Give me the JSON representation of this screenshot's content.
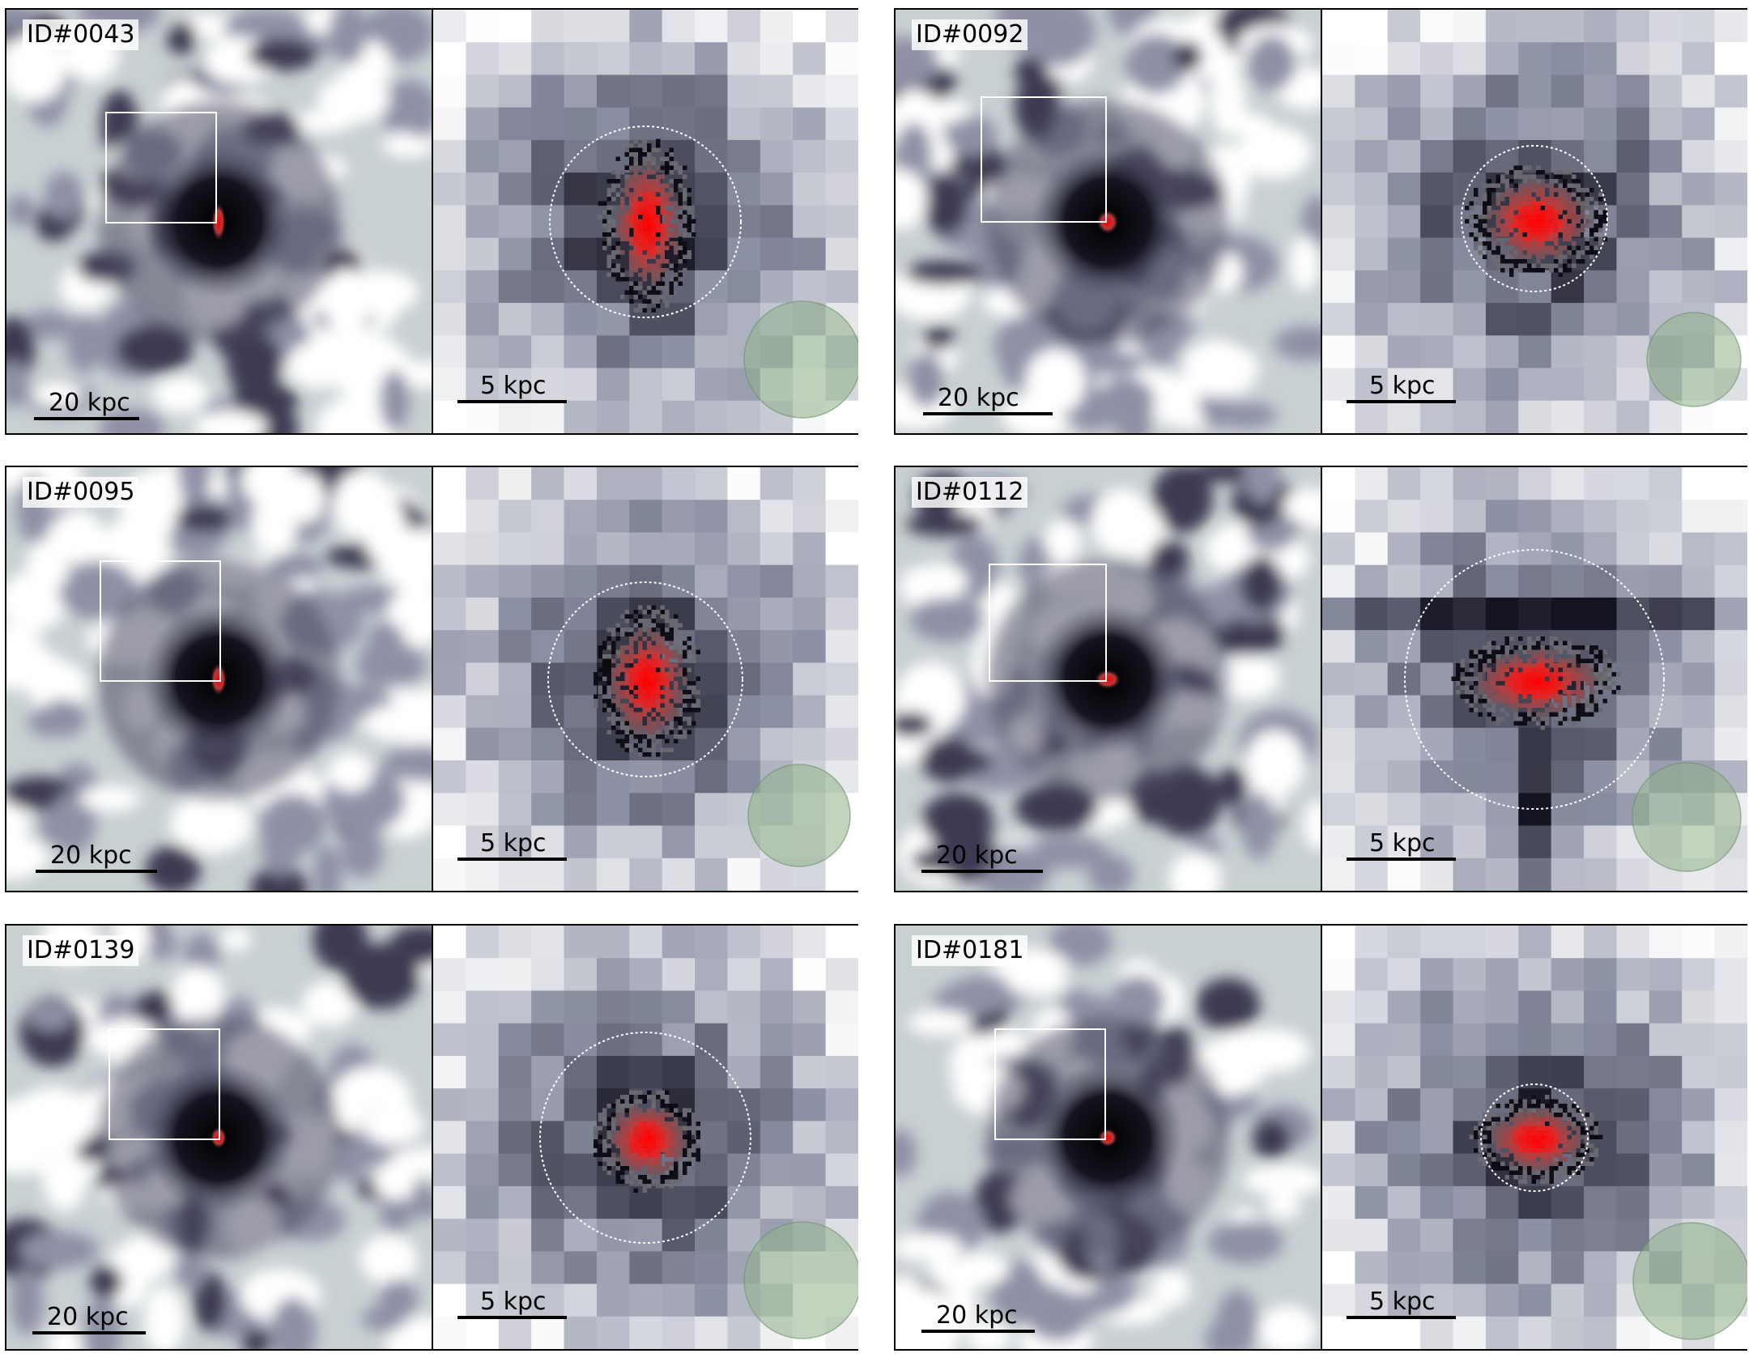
{
  "panels": [
    {
      "id": "ID#0043",
      "left_scale": "20 kpc",
      "right_scale": "5 kpc",
      "seed": 43
    },
    {
      "id": "ID#0092",
      "left_scale": "20 kpc",
      "right_scale": "5 kpc",
      "seed": 92
    },
    {
      "id": "ID#0095",
      "left_scale": "20 kpc",
      "right_scale": "5 kpc",
      "seed": 95
    },
    {
      "id": "ID#0112",
      "left_scale": "20 kpc",
      "right_scale": "5 kpc",
      "seed": 112
    },
    {
      "id": "ID#0139",
      "left_scale": "20 kpc",
      "right_scale": "5 kpc",
      "seed": 139
    },
    {
      "id": "ID#0181",
      "left_scale": "20 kpc",
      "right_scale": "5 kpc",
      "seed": 181
    }
  ],
  "colors": {
    "bright_sky": "#ffffff",
    "mid_sky": "#7d7f99",
    "dark_core": "#000000",
    "source_red": "#ff0000",
    "beam_green": "#8fb088"
  }
}
